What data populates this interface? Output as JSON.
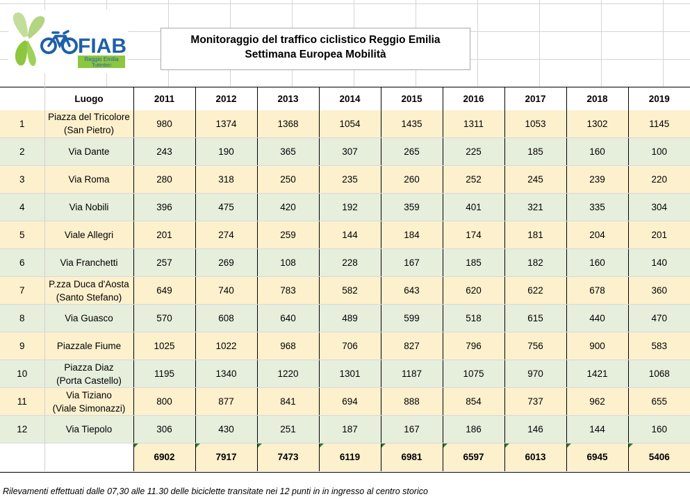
{
  "logo": {
    "brand": "FIAB",
    "sub1": "Reggio Emilia",
    "sub2": "Tuttinbici"
  },
  "title": {
    "line1": "Monitoraggio del traffico ciclistico Reggio Emilia",
    "line2": "Settimana Europea Mobilità"
  },
  "table": {
    "header_place": "Luogo",
    "years": [
      "2011",
      "2012",
      "2013",
      "2014",
      "2015",
      "2016",
      "2017",
      "2018",
      "2019"
    ],
    "rows": [
      {
        "n": "1",
        "name": "Piazza del Tricolore",
        "name2": "(San Pietro)",
        "values": [
          "980",
          "1374",
          "1368",
          "1054",
          "1435",
          "1311",
          "1053",
          "1302",
          "1145"
        ]
      },
      {
        "n": "2",
        "name": "Via Dante",
        "name2": "",
        "values": [
          "243",
          "190",
          "365",
          "307",
          "265",
          "225",
          "185",
          "160",
          "100"
        ]
      },
      {
        "n": "3",
        "name": "Via Roma",
        "name2": "",
        "values": [
          "280",
          "318",
          "250",
          "235",
          "260",
          "252",
          "245",
          "239",
          "220"
        ]
      },
      {
        "n": "4",
        "name": "Via Nobili",
        "name2": "",
        "values": [
          "396",
          "475",
          "420",
          "192",
          "359",
          "401",
          "321",
          "335",
          "304"
        ]
      },
      {
        "n": "5",
        "name": "Viale Allegri",
        "name2": "",
        "values": [
          "201",
          "274",
          "259",
          "144",
          "184",
          "174",
          "181",
          "204",
          "201"
        ]
      },
      {
        "n": "6",
        "name": "Via Franchetti",
        "name2": "",
        "values": [
          "257",
          "269",
          "108",
          "228",
          "167",
          "185",
          "182",
          "160",
          "140"
        ]
      },
      {
        "n": "7",
        "name": "P.zza Duca d'Aosta",
        "name2": "(Santo Stefano)",
        "values": [
          "649",
          "740",
          "783",
          "582",
          "643",
          "620",
          "622",
          "678",
          "360"
        ]
      },
      {
        "n": "8",
        "name": "Via Guasco",
        "name2": "",
        "values": [
          "570",
          "608",
          "640",
          "489",
          "599",
          "518",
          "615",
          "440",
          "470"
        ]
      },
      {
        "n": "9",
        "name": "Piazzale Fiume",
        "name2": "",
        "values": [
          "1025",
          "1022",
          "968",
          "706",
          "827",
          "796",
          "756",
          "900",
          "583"
        ]
      },
      {
        "n": "10",
        "name": "Piazza Diaz",
        "name2": "(Porta Castello)",
        "values": [
          "1195",
          "1340",
          "1220",
          "1301",
          "1187",
          "1075",
          "970",
          "1421",
          "1068"
        ]
      },
      {
        "n": "11",
        "name": "Via Tiziano",
        "name2": "(Viale Simonazzi)",
        "values": [
          "800",
          "877",
          "841",
          "694",
          "888",
          "854",
          "737",
          "962",
          "655"
        ]
      },
      {
        "n": "12",
        "name": "Via Tiepolo",
        "name2": "",
        "values": [
          "306",
          "430",
          "251",
          "187",
          "167",
          "186",
          "146",
          "144",
          "160"
        ]
      }
    ],
    "totals": [
      "6902",
      "7917",
      "7473",
      "6119",
      "6981",
      "6597",
      "6013",
      "6945",
      "5406"
    ]
  },
  "footer": "Rilevamenti effettuati dalle 07,30 alle 11.30 delle biciclette transitate nei 12 punti in in ingresso al centro storico",
  "colors": {
    "row_odd": "#fdf0cd",
    "row_even": "#e6eedc",
    "logo_blue": "#1f5fa8",
    "logo_green": "#8dc63f"
  }
}
